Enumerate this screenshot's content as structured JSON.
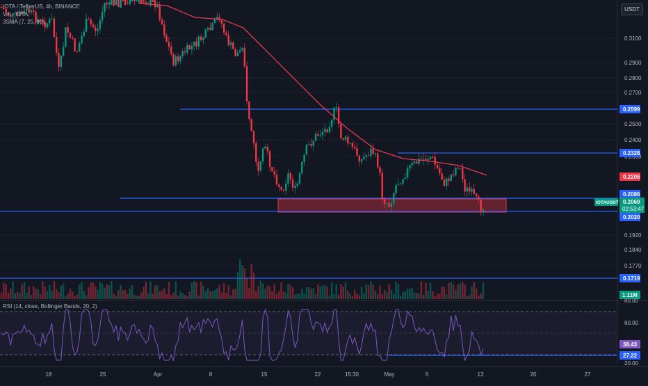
{
  "header": {
    "symbol_title": "IOTA / TetherUS, 4h, BINANCE",
    "volume_label": "Vol · IOTA",
    "sma_label": "3SMA (7, 25, 99)",
    "currency": "USDT"
  },
  "price_axis": {
    "ticks": [
      "0.3100",
      "0.2900",
      "0.2800",
      "0.2700",
      "0.2500",
      "0.2400",
      "0.2300",
      "0.1920",
      "0.1840",
      "0.1770"
    ]
  },
  "level_badges": [
    {
      "value": "0.2599",
      "color": "#2962ff"
    },
    {
      "value": "0.2328",
      "color": "#2962ff"
    },
    {
      "value": "0.2206",
      "color": "#f23645"
    },
    {
      "value": "0.2086",
      "color": "#2962ff"
    },
    {
      "value": "0.2020",
      "color": "#2962ff"
    },
    {
      "value": "0.1719",
      "color": "#2962ff"
    }
  ],
  "ticker": {
    "symbol": "IOTAUSDT",
    "price": "0.2069",
    "countdown": "02:53:47",
    "color": "#089981"
  },
  "volume_badge": {
    "value": "1.11M",
    "color": "#089981"
  },
  "rsi": {
    "label": "RSI (14, close, Bollinger Bands, 20, 2)",
    "ticks": [
      "80.00",
      "60.00",
      "20.00"
    ],
    "value_badge": {
      "value": "38.43",
      "color": "#7e57c2"
    },
    "level_badge": {
      "value": "27.22",
      "color": "#2962ff"
    }
  },
  "time_axis": {
    "labels": [
      "18",
      "25",
      "Apr",
      "8",
      "15",
      "22",
      "15:30",
      "May",
      "6",
      "13",
      "20",
      "27"
    ]
  },
  "colors": {
    "up": "#089981",
    "down": "#f23645",
    "ma": "#e53950",
    "level": "#2962ff",
    "zone": "#f23645",
    "rsi_line": "#7e57c2"
  }
}
